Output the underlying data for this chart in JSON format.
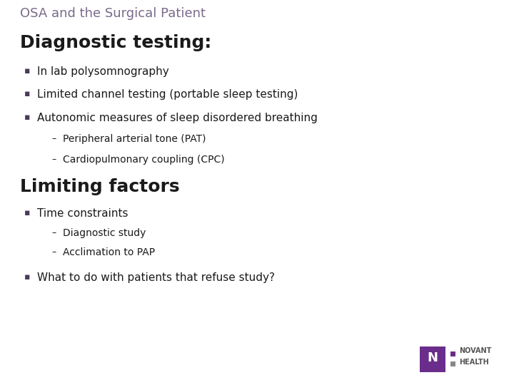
{
  "background_color": "#ffffff",
  "title": "OSA and the Surgical Patient",
  "title_color": "#7a6a8a",
  "title_fontsize": 13,
  "section1_heading": "Diagnostic testing:",
  "section1_heading_fontsize": 18,
  "section1_heading_color": "#1a1a1a",
  "section1_bullets": [
    "In lab polysomnography",
    "Limited channel testing (portable sleep testing)",
    "Autonomic measures of sleep disordered breathing"
  ],
  "section1_sub_bullets": [
    "Peripheral arterial tone (PAT)",
    "Cardiopulmonary coupling (CPC)"
  ],
  "section2_heading": "Limiting factors",
  "section2_heading_fontsize": 18,
  "section2_heading_color": "#1a1a1a",
  "section2_bullets": [
    "Time constraints"
  ],
  "section2_sub_bullets_time": [
    "Diagnostic study",
    "Acclimation to PAP"
  ],
  "section2_bullets2": [
    "What to do with patients that refuse study?"
  ],
  "bullet_color": "#4a3a5a",
  "bullet_fontsize": 11,
  "sub_bullet_fontsize": 10,
  "body_text_color": "#1a1a1a",
  "novant_n_color": "#6b2d8b",
  "novant_text_color": "#555555"
}
